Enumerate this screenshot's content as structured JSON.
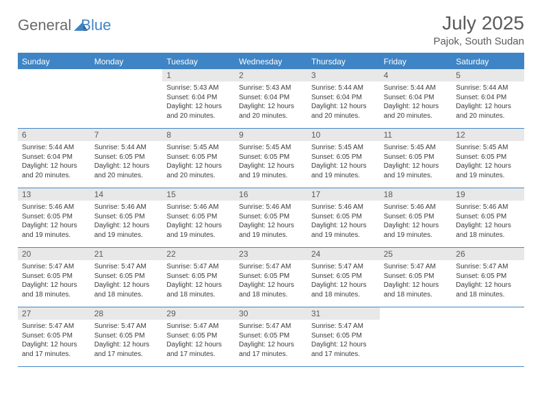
{
  "brand": {
    "part1": "General",
    "part2": "Blue"
  },
  "title": "July 2025",
  "location": "Pajok, South Sudan",
  "colors": {
    "accent": "#3f84c4",
    "header_text": "#ffffff",
    "num_bg": "#e8e8e8",
    "body_text": "#3a3a3a",
    "title_text": "#5a5a5a",
    "logo_gray": "#6a6a6a"
  },
  "dayNames": [
    "Sunday",
    "Monday",
    "Tuesday",
    "Wednesday",
    "Thursday",
    "Friday",
    "Saturday"
  ],
  "startDayIndex": 2,
  "daysInMonth": 31,
  "days": {
    "1": {
      "sunrise": "5:43 AM",
      "sunset": "6:04 PM",
      "daylight": "12 hours and 20 minutes."
    },
    "2": {
      "sunrise": "5:43 AM",
      "sunset": "6:04 PM",
      "daylight": "12 hours and 20 minutes."
    },
    "3": {
      "sunrise": "5:44 AM",
      "sunset": "6:04 PM",
      "daylight": "12 hours and 20 minutes."
    },
    "4": {
      "sunrise": "5:44 AM",
      "sunset": "6:04 PM",
      "daylight": "12 hours and 20 minutes."
    },
    "5": {
      "sunrise": "5:44 AM",
      "sunset": "6:04 PM",
      "daylight": "12 hours and 20 minutes."
    },
    "6": {
      "sunrise": "5:44 AM",
      "sunset": "6:04 PM",
      "daylight": "12 hours and 20 minutes."
    },
    "7": {
      "sunrise": "5:44 AM",
      "sunset": "6:05 PM",
      "daylight": "12 hours and 20 minutes."
    },
    "8": {
      "sunrise": "5:45 AM",
      "sunset": "6:05 PM",
      "daylight": "12 hours and 20 minutes."
    },
    "9": {
      "sunrise": "5:45 AM",
      "sunset": "6:05 PM",
      "daylight": "12 hours and 19 minutes."
    },
    "10": {
      "sunrise": "5:45 AM",
      "sunset": "6:05 PM",
      "daylight": "12 hours and 19 minutes."
    },
    "11": {
      "sunrise": "5:45 AM",
      "sunset": "6:05 PM",
      "daylight": "12 hours and 19 minutes."
    },
    "12": {
      "sunrise": "5:45 AM",
      "sunset": "6:05 PM",
      "daylight": "12 hours and 19 minutes."
    },
    "13": {
      "sunrise": "5:46 AM",
      "sunset": "6:05 PM",
      "daylight": "12 hours and 19 minutes."
    },
    "14": {
      "sunrise": "5:46 AM",
      "sunset": "6:05 PM",
      "daylight": "12 hours and 19 minutes."
    },
    "15": {
      "sunrise": "5:46 AM",
      "sunset": "6:05 PM",
      "daylight": "12 hours and 19 minutes."
    },
    "16": {
      "sunrise": "5:46 AM",
      "sunset": "6:05 PM",
      "daylight": "12 hours and 19 minutes."
    },
    "17": {
      "sunrise": "5:46 AM",
      "sunset": "6:05 PM",
      "daylight": "12 hours and 19 minutes."
    },
    "18": {
      "sunrise": "5:46 AM",
      "sunset": "6:05 PM",
      "daylight": "12 hours and 19 minutes."
    },
    "19": {
      "sunrise": "5:46 AM",
      "sunset": "6:05 PM",
      "daylight": "12 hours and 18 minutes."
    },
    "20": {
      "sunrise": "5:47 AM",
      "sunset": "6:05 PM",
      "daylight": "12 hours and 18 minutes."
    },
    "21": {
      "sunrise": "5:47 AM",
      "sunset": "6:05 PM",
      "daylight": "12 hours and 18 minutes."
    },
    "22": {
      "sunrise": "5:47 AM",
      "sunset": "6:05 PM",
      "daylight": "12 hours and 18 minutes."
    },
    "23": {
      "sunrise": "5:47 AM",
      "sunset": "6:05 PM",
      "daylight": "12 hours and 18 minutes."
    },
    "24": {
      "sunrise": "5:47 AM",
      "sunset": "6:05 PM",
      "daylight": "12 hours and 18 minutes."
    },
    "25": {
      "sunrise": "5:47 AM",
      "sunset": "6:05 PM",
      "daylight": "12 hours and 18 minutes."
    },
    "26": {
      "sunrise": "5:47 AM",
      "sunset": "6:05 PM",
      "daylight": "12 hours and 18 minutes."
    },
    "27": {
      "sunrise": "5:47 AM",
      "sunset": "6:05 PM",
      "daylight": "12 hours and 17 minutes."
    },
    "28": {
      "sunrise": "5:47 AM",
      "sunset": "6:05 PM",
      "daylight": "12 hours and 17 minutes."
    },
    "29": {
      "sunrise": "5:47 AM",
      "sunset": "6:05 PM",
      "daylight": "12 hours and 17 minutes."
    },
    "30": {
      "sunrise": "5:47 AM",
      "sunset": "6:05 PM",
      "daylight": "12 hours and 17 minutes."
    },
    "31": {
      "sunrise": "5:47 AM",
      "sunset": "6:05 PM",
      "daylight": "12 hours and 17 minutes."
    }
  },
  "labels": {
    "sunrise": "Sunrise:",
    "sunset": "Sunset:",
    "daylight": "Daylight:"
  }
}
